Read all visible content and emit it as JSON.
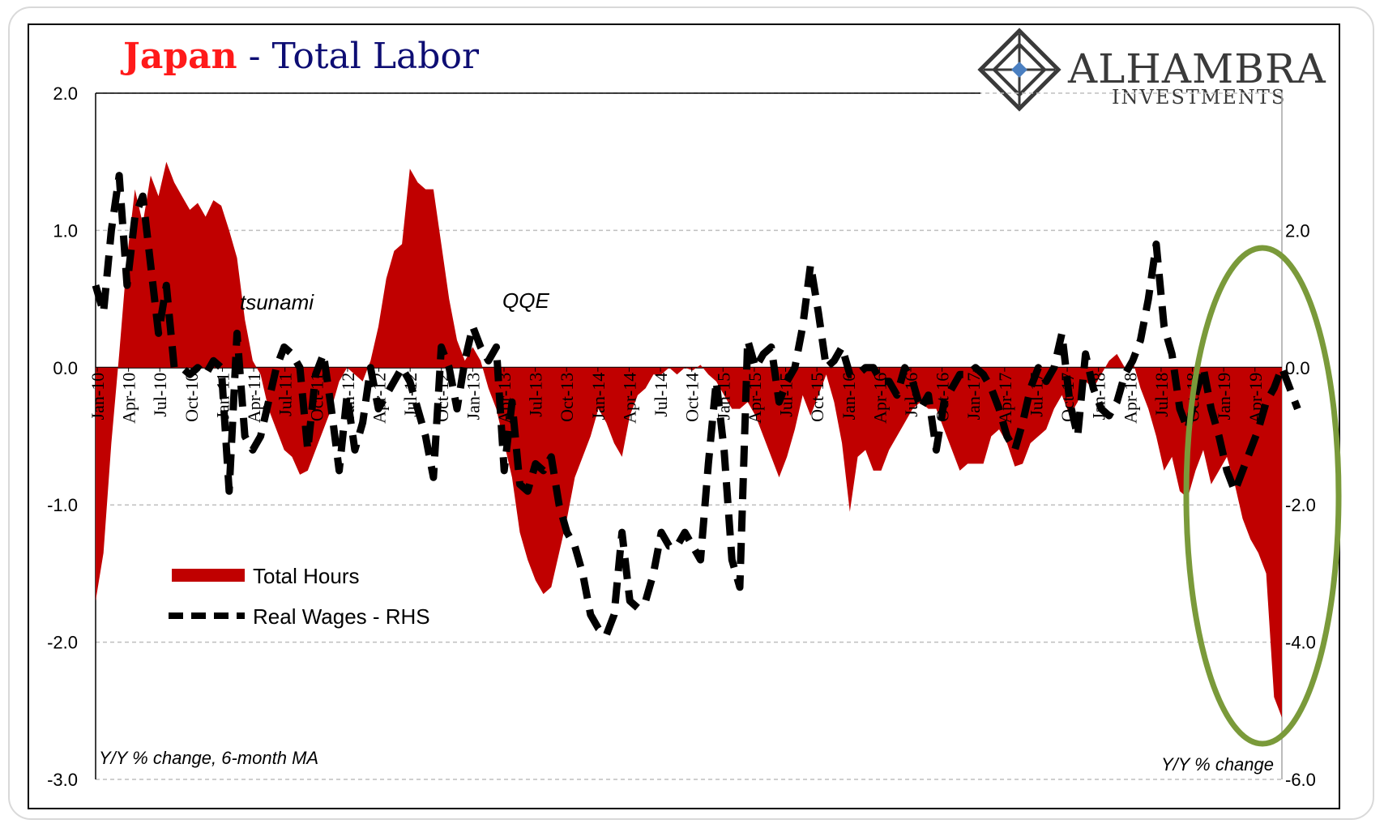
{
  "chart_data": {
    "type": "area+line",
    "title_part1": "Japan",
    "title_sep": " - ",
    "title_part2": "Total Labor",
    "title_colors": {
      "part1": "#ff1a1a",
      "part2": "#0d0d73"
    },
    "logo": {
      "name": "ALHAMBRA",
      "sub": "INVESTMENTS"
    },
    "y_left": {
      "min": -3.0,
      "max": 2.0,
      "ticks": [
        "2.0",
        "1.0",
        "0.0",
        "-1.0",
        "-2.0",
        "-3.0"
      ]
    },
    "y_right": {
      "min": -6.0,
      "max": 4.0,
      "ticks": [
        "2.0",
        "0.0",
        "-2.0",
        "-4.0",
        "-6.0"
      ]
    },
    "x_ticks": [
      "Jan-10",
      "Apr-10",
      "Jul-10",
      "Oct-10",
      "Jan-11",
      "Apr-11",
      "Jul-11",
      "Oct-11",
      "Jan-12",
      "Apr-12",
      "Jul-12",
      "Oct-12",
      "Jan-13",
      "Apr-13",
      "Jul-13",
      "Oct-13",
      "Jan-14",
      "Apr-14",
      "Jul-14",
      "Oct-14",
      "Jan-15",
      "Apr-15",
      "Jul-15",
      "Oct-15",
      "Jan-16",
      "Apr-16",
      "Jul-16",
      "Oct-16",
      "Jan-17",
      "Apr-17",
      "Jul-17",
      "Oct-17",
      "Jan-18",
      "Apr-18",
      "Jul-18",
      "Oct-18",
      "Jan-19",
      "Apr-19"
    ],
    "note_left": "Y/Y % change, 6-month MA",
    "note_right": "Y/Y % change",
    "annotations": [
      {
        "text": "tsunami",
        "x": "Apr-11"
      },
      {
        "text": "QQE",
        "x": "Apr-13"
      }
    ],
    "series": [
      {
        "name": "Total Hours",
        "axis": "left",
        "style": "area",
        "color": "#c00000",
        "values": [
          -1.7,
          -1.35,
          -0.55,
          0.1,
          0.8,
          1.3,
          1.05,
          1.4,
          1.25,
          1.5,
          1.35,
          1.25,
          1.15,
          1.2,
          1.1,
          1.22,
          1.18,
          1.0,
          0.8,
          0.35,
          0.05,
          -0.05,
          -0.3,
          -0.45,
          -0.6,
          -0.65,
          -0.78,
          -0.75,
          -0.6,
          -0.45,
          -0.3,
          -0.1,
          0.0,
          -0.05,
          -0.1,
          0.05,
          0.3,
          0.65,
          0.85,
          0.9,
          1.45,
          1.35,
          1.3,
          1.3,
          0.9,
          0.5,
          0.2,
          0.05,
          0.15,
          0.05,
          -0.15,
          -0.3,
          -0.55,
          -0.8,
          -1.2,
          -1.4,
          -1.55,
          -1.65,
          -1.6,
          -1.35,
          -1.1,
          -0.8,
          -0.65,
          -0.5,
          -0.3,
          -0.4,
          -0.55,
          -0.65,
          -0.35,
          -0.2,
          -0.15,
          -0.05,
          -0.05,
          0.0,
          -0.05,
          0.0,
          -0.02,
          0.02,
          -0.05,
          -0.1,
          -0.2,
          -0.3,
          -0.3,
          -0.25,
          -0.35,
          -0.5,
          -0.65,
          -0.8,
          -0.65,
          -0.45,
          -0.2,
          -0.35,
          -0.2,
          -0.05,
          -0.25,
          -0.55,
          -1.05,
          -0.65,
          -0.6,
          -0.75,
          -0.75,
          -0.6,
          -0.5,
          -0.4,
          -0.3,
          -0.25,
          -0.3,
          -0.3,
          -0.45,
          -0.6,
          -0.75,
          -0.7,
          -0.7,
          -0.7,
          -0.5,
          -0.45,
          -0.55,
          -0.72,
          -0.7,
          -0.55,
          -0.5,
          -0.45,
          -0.3,
          -0.2,
          -0.35,
          -0.25,
          -0.1,
          -0.15,
          -0.05,
          0.05,
          0.1,
          0.0,
          0.05,
          -0.15,
          -0.3,
          -0.5,
          -0.75,
          -0.65,
          -0.9,
          -0.95,
          -0.75,
          -0.6,
          -0.85,
          -0.75,
          -0.65,
          -0.85,
          -1.1,
          -1.25,
          -1.35,
          -1.5,
          -2.4,
          -2.55
        ]
      },
      {
        "name": "Real Wages - RHS",
        "axis": "right",
        "style": "dashed",
        "color": "#000000",
        "values": [
          1.2,
          0.8,
          2.0,
          2.8,
          1.2,
          2.2,
          2.5,
          1.5,
          0.5,
          1.2,
          0.0,
          0.0,
          -0.1,
          0.0,
          -0.1,
          0.1,
          0.0,
          -1.8,
          0.5,
          -1.0,
          -1.2,
          -1.0,
          -0.5,
          0.0,
          0.3,
          0.2,
          0.0,
          -1.2,
          -0.1,
          0.2,
          -0.6,
          -1.5,
          -0.4,
          -1.2,
          -0.8,
          0.0,
          -0.6,
          -0.4,
          -0.2,
          0.0,
          -0.2,
          -0.6,
          -1.0,
          -1.6,
          0.3,
          0.0,
          -0.6,
          0.1,
          0.6,
          0.3,
          0.1,
          0.3,
          -1.5,
          -0.5,
          -1.7,
          -1.8,
          -1.4,
          -1.5,
          -1.3,
          -2.0,
          -2.4,
          -2.6,
          -3.0,
          -3.6,
          -3.8,
          -3.9,
          -3.6,
          -2.4,
          -3.4,
          -3.5,
          -3.4,
          -3.0,
          -2.4,
          -2.6,
          -2.6,
          -2.4,
          -2.6,
          -2.8,
          -1.4,
          -0.2,
          -1.2,
          -2.8,
          -3.2,
          0.4,
          0.0,
          0.2,
          0.3,
          -0.5,
          -0.2,
          0.0,
          0.6,
          1.5,
          0.8,
          0.0,
          0.1,
          0.3,
          -0.1,
          -0.1,
          0.0,
          0.0,
          -0.2,
          -0.2,
          -0.4,
          0.0,
          -0.2,
          -0.6,
          -0.4,
          -1.2,
          -0.5,
          -0.3,
          -0.1,
          -0.1,
          0.0,
          -0.1,
          -0.3,
          -0.6,
          -1.0,
          -1.2,
          -0.8,
          -0.3,
          0.0,
          -0.2,
          0.0,
          0.5,
          -0.5,
          -1.0,
          0.2,
          -0.3,
          -0.6,
          -0.7,
          -0.5,
          -0.1,
          0.1,
          0.4,
          1.0,
          1.8,
          0.6,
          0.2,
          -0.6,
          -0.9,
          -0.4,
          0.0,
          -0.6,
          -1.0,
          -1.5,
          -1.8,
          -1.5,
          -1.2,
          -0.9,
          -0.5,
          -0.3,
          0.0,
          -0.3,
          -0.6
        ]
      }
    ],
    "highlight": {
      "shape": "ellipse",
      "color": "#7a9a3a",
      "x_range": [
        "Oct-18",
        "Jul-19"
      ]
    }
  }
}
